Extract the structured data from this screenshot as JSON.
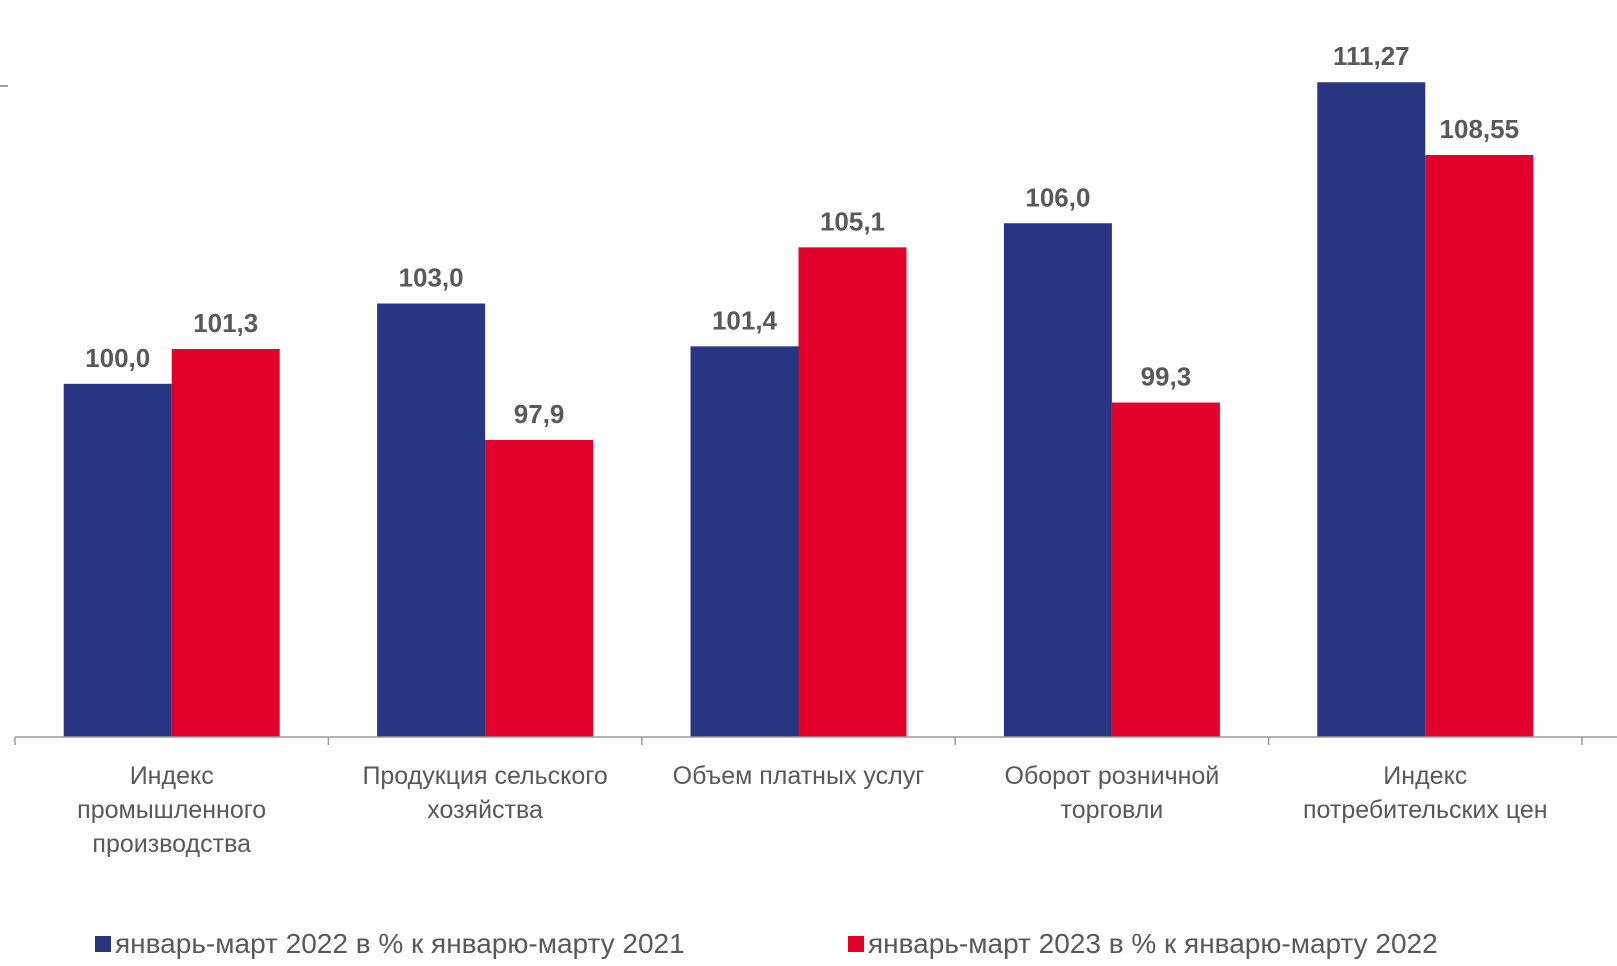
{
  "chart_data": {
    "type": "bar",
    "categories": [
      [
        "Индекс",
        "промышленного",
        "производства"
      ],
      [
        "Продукция сельского",
        "хозяйства"
      ],
      [
        "Объем платных услуг"
      ],
      [
        "Оборот розничной",
        "торговли"
      ],
      [
        "Индекс",
        "потребительских цен"
      ]
    ],
    "series": [
      {
        "name": "январь-март 2022 в % к январю-марту 2021",
        "color": "#283583",
        "values": [
          100.0,
          103.0,
          101.4,
          106.0,
          111.27
        ],
        "labels": [
          "100,0",
          "103,0",
          "101,4",
          "106,0",
          "111,27"
        ]
      },
      {
        "name": "январь-март 2023 в % к январю-марту 2022",
        "color": "#E3002B",
        "values": [
          101.3,
          97.9,
          105.1,
          99.3,
          108.55
        ],
        "labels": [
          "101,3",
          "97,9",
          "105,1",
          "99,3",
          "108,55"
        ]
      }
    ],
    "ylim": [
      86.8,
      112.4
    ],
    "grid": false,
    "legend_position": "bottom"
  }
}
